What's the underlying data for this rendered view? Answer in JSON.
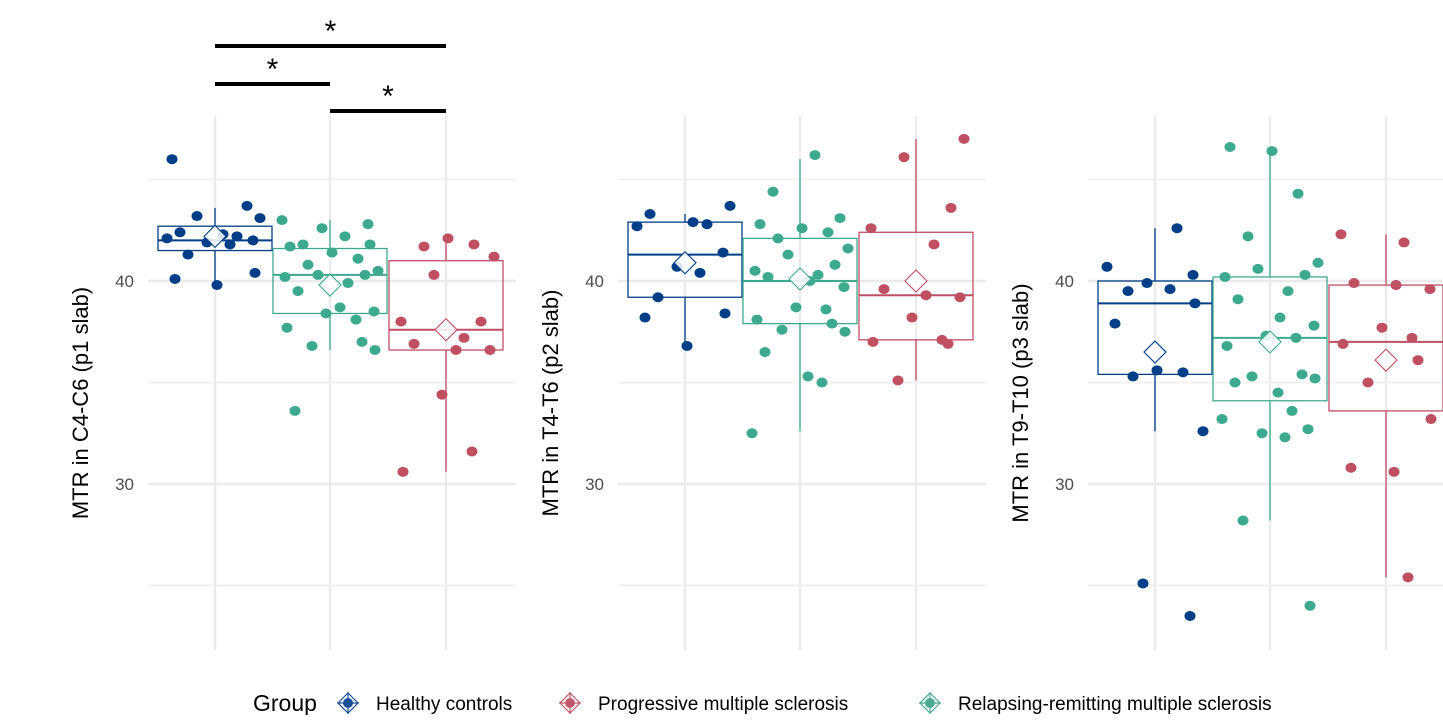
{
  "legend": {
    "title": "Group",
    "items": [
      {
        "label": "Healthy controls",
        "color": "#1a4f96"
      },
      {
        "label": "Progressive multiple sclerosis",
        "color": "#c05a6a"
      },
      {
        "label": "Relapsing-remitting multiple sclerosis",
        "color": "#4aaa94"
      }
    ]
  },
  "chart_data": [
    {
      "type": "box",
      "ylabel": "MTR in C4-C6 (p1 slab)",
      "ylim": [
        22.2,
        48.2
      ],
      "yticks": [
        30,
        40
      ],
      "grid": true,
      "groups": [
        {
          "name": "Healthy controls",
          "color": "#003f87",
          "box": {
            "lower_whisker": 39.9,
            "q1": 41.5,
            "median": 42.0,
            "q3": 42.7,
            "upper_whisker": 43.6,
            "mean": 42.2
          },
          "points": [
            46.0,
            43.7,
            43.2,
            43.1,
            42.4,
            42.3,
            42.2,
            42.1,
            42.0,
            41.9,
            41.8,
            41.3,
            40.4,
            40.1,
            39.8
          ]
        },
        {
          "name": "Relapsing-remitting multiple sclerosis",
          "color": "#3daa8f",
          "box": {
            "lower_whisker": 36.6,
            "q1": 38.4,
            "median": 40.3,
            "q3": 41.6,
            "upper_whisker": 43.0,
            "mean": 39.8
          },
          "points": [
            43.0,
            42.8,
            42.6,
            42.2,
            41.8,
            41.8,
            41.7,
            41.4,
            41.1,
            40.8,
            40.5,
            40.3,
            40.3,
            40.2,
            39.9,
            39.5,
            38.7,
            38.5,
            38.4,
            38.1,
            37.7,
            37.0,
            36.8,
            36.6,
            33.6
          ]
        },
        {
          "name": "Progressive multiple sclerosis",
          "color": "#bf4f63",
          "box": {
            "lower_whisker": 30.6,
            "q1": 36.6,
            "median": 37.6,
            "q3": 41.0,
            "upper_whisker": 42.0,
            "mean": 37.6
          },
          "points": [
            42.1,
            41.8,
            41.7,
            41.2,
            40.3,
            38.0,
            38.0,
            37.2,
            36.9,
            36.6,
            36.6,
            34.4,
            31.6,
            30.6
          ]
        }
      ],
      "significance": [
        {
          "from": "Healthy controls",
          "to": "Progressive multiple sclerosis",
          "label": "*"
        },
        {
          "from": "Healthy controls",
          "to": "Relapsing-remitting multiple sclerosis",
          "label": "*"
        },
        {
          "from": "Relapsing-remitting multiple sclerosis",
          "to": "Progressive multiple sclerosis",
          "label": "*"
        }
      ]
    },
    {
      "type": "box",
      "ylabel": "MTR in T4-T6 (p2 slab)",
      "ylim": [
        22.2,
        48.2
      ],
      "yticks": [
        30,
        40
      ],
      "grid": true,
      "groups": [
        {
          "name": "Healthy controls",
          "color": "#003f87",
          "box": {
            "lower_whisker": 36.9,
            "q1": 39.2,
            "median": 41.3,
            "q3": 42.9,
            "upper_whisker": 43.3,
            "mean": 40.9
          },
          "points": [
            43.7,
            43.3,
            42.9,
            42.8,
            42.7,
            41.4,
            40.7,
            40.4,
            39.2,
            38.4,
            38.2,
            36.8
          ]
        },
        {
          "name": "Relapsing-remitting multiple sclerosis",
          "color": "#3daa8f",
          "box": {
            "lower_whisker": 32.6,
            "q1": 37.9,
            "median": 40.0,
            "q3": 42.1,
            "upper_whisker": 46.0,
            "mean": 40.1
          },
          "points": [
            46.2,
            44.4,
            43.1,
            42.8,
            42.6,
            42.4,
            42.1,
            41.6,
            41.3,
            40.8,
            40.5,
            40.3,
            40.2,
            40.0,
            39.7,
            38.7,
            38.6,
            38.1,
            37.9,
            37.6,
            37.5,
            36.5,
            35.3,
            35.0,
            32.5
          ]
        },
        {
          "name": "Progressive multiple sclerosis",
          "color": "#bf4f63",
          "box": {
            "lower_whisker": 35.1,
            "q1": 37.1,
            "median": 39.3,
            "q3": 42.4,
            "upper_whisker": 47.0,
            "mean": 40.0
          },
          "points": [
            47.0,
            46.1,
            43.6,
            42.6,
            41.8,
            39.6,
            39.3,
            39.2,
            38.2,
            37.1,
            37.0,
            36.9,
            35.1
          ]
        }
      ]
    },
    {
      "type": "box",
      "ylabel": "MTR in T9-T10 (p3 slab)",
      "ylim": [
        22.2,
        48.2
      ],
      "yticks": [
        30,
        40
      ],
      "grid": true,
      "groups": [
        {
          "name": "Healthy controls",
          "color": "#003f87",
          "box": {
            "lower_whisker": 32.6,
            "q1": 35.4,
            "median": 38.9,
            "q3": 40.0,
            "upper_whisker": 42.6,
            "mean": 36.5
          },
          "points": [
            42.6,
            40.7,
            40.3,
            39.9,
            39.6,
            39.5,
            38.9,
            37.9,
            35.6,
            35.5,
            35.3,
            32.6,
            25.1,
            23.5
          ]
        },
        {
          "name": "Relapsing-remitting multiple sclerosis",
          "color": "#3daa8f",
          "box": {
            "lower_whisker": 28.2,
            "q1": 34.1,
            "median": 37.2,
            "q3": 40.2,
            "upper_whisker": 46.6,
            "mean": 37.0
          },
          "points": [
            46.6,
            46.4,
            44.3,
            42.2,
            40.9,
            40.6,
            40.3,
            40.2,
            39.5,
            39.1,
            38.2,
            37.8,
            37.3,
            37.2,
            36.8,
            35.4,
            35.3,
            35.2,
            35.0,
            34.5,
            33.6,
            33.2,
            32.7,
            32.5,
            32.3,
            28.2,
            24.0
          ]
        },
        {
          "name": "Progressive multiple sclerosis",
          "color": "#bf4f63",
          "box": {
            "lower_whisker": 25.4,
            "q1": 33.6,
            "median": 37.0,
            "q3": 39.8,
            "upper_whisker": 42.3,
            "mean": 36.1
          },
          "points": [
            42.3,
            41.9,
            39.9,
            39.8,
            39.6,
            37.7,
            37.2,
            36.9,
            36.1,
            35.0,
            33.2,
            30.8,
            30.6,
            25.4
          ]
        }
      ]
    }
  ]
}
